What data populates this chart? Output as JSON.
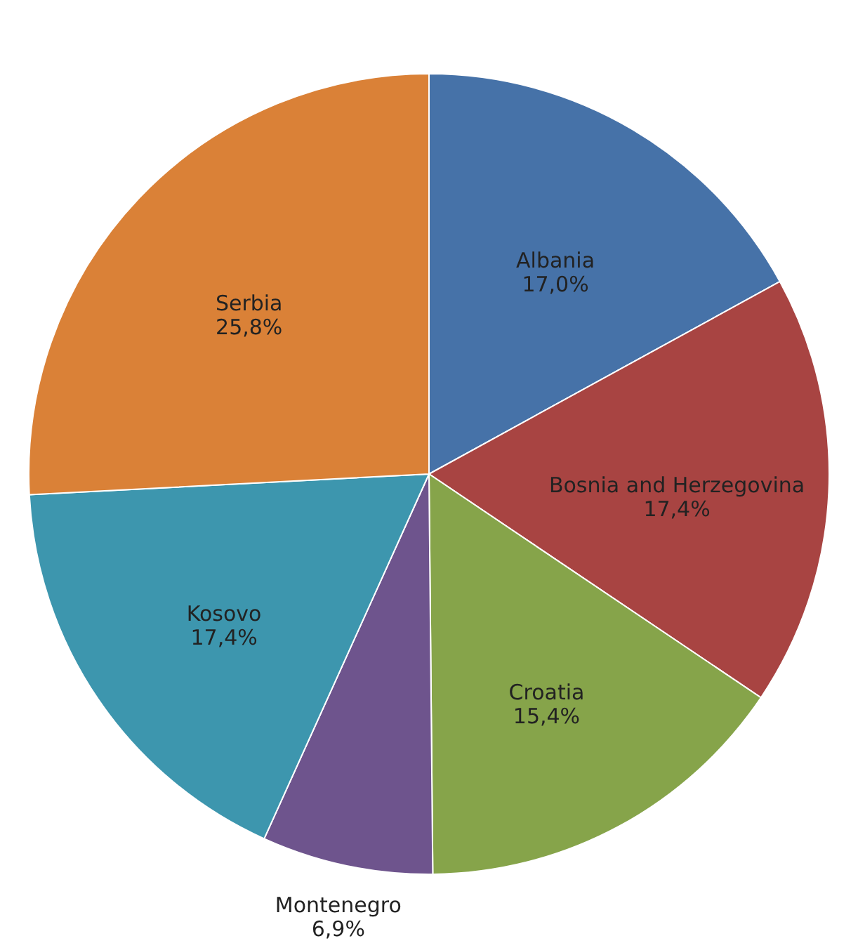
{
  "chart_data": {
    "type": "pie",
    "categories": [
      "Albania",
      "Bosnia and Herzegovina",
      "Croatia",
      "Montenegro",
      "Kosovo",
      "Serbia"
    ],
    "values": [
      17.0,
      17.4,
      15.4,
      6.9,
      17.4,
      25.8
    ],
    "value_labels": [
      "17,0%",
      "17,4%",
      "15,4%",
      "6,9%",
      "17,4%",
      "25,8%"
    ],
    "colors": [
      "#4672a8",
      "#a84442",
      "#86a44a",
      "#6e548d",
      "#3d96ae",
      "#da8137"
    ]
  }
}
